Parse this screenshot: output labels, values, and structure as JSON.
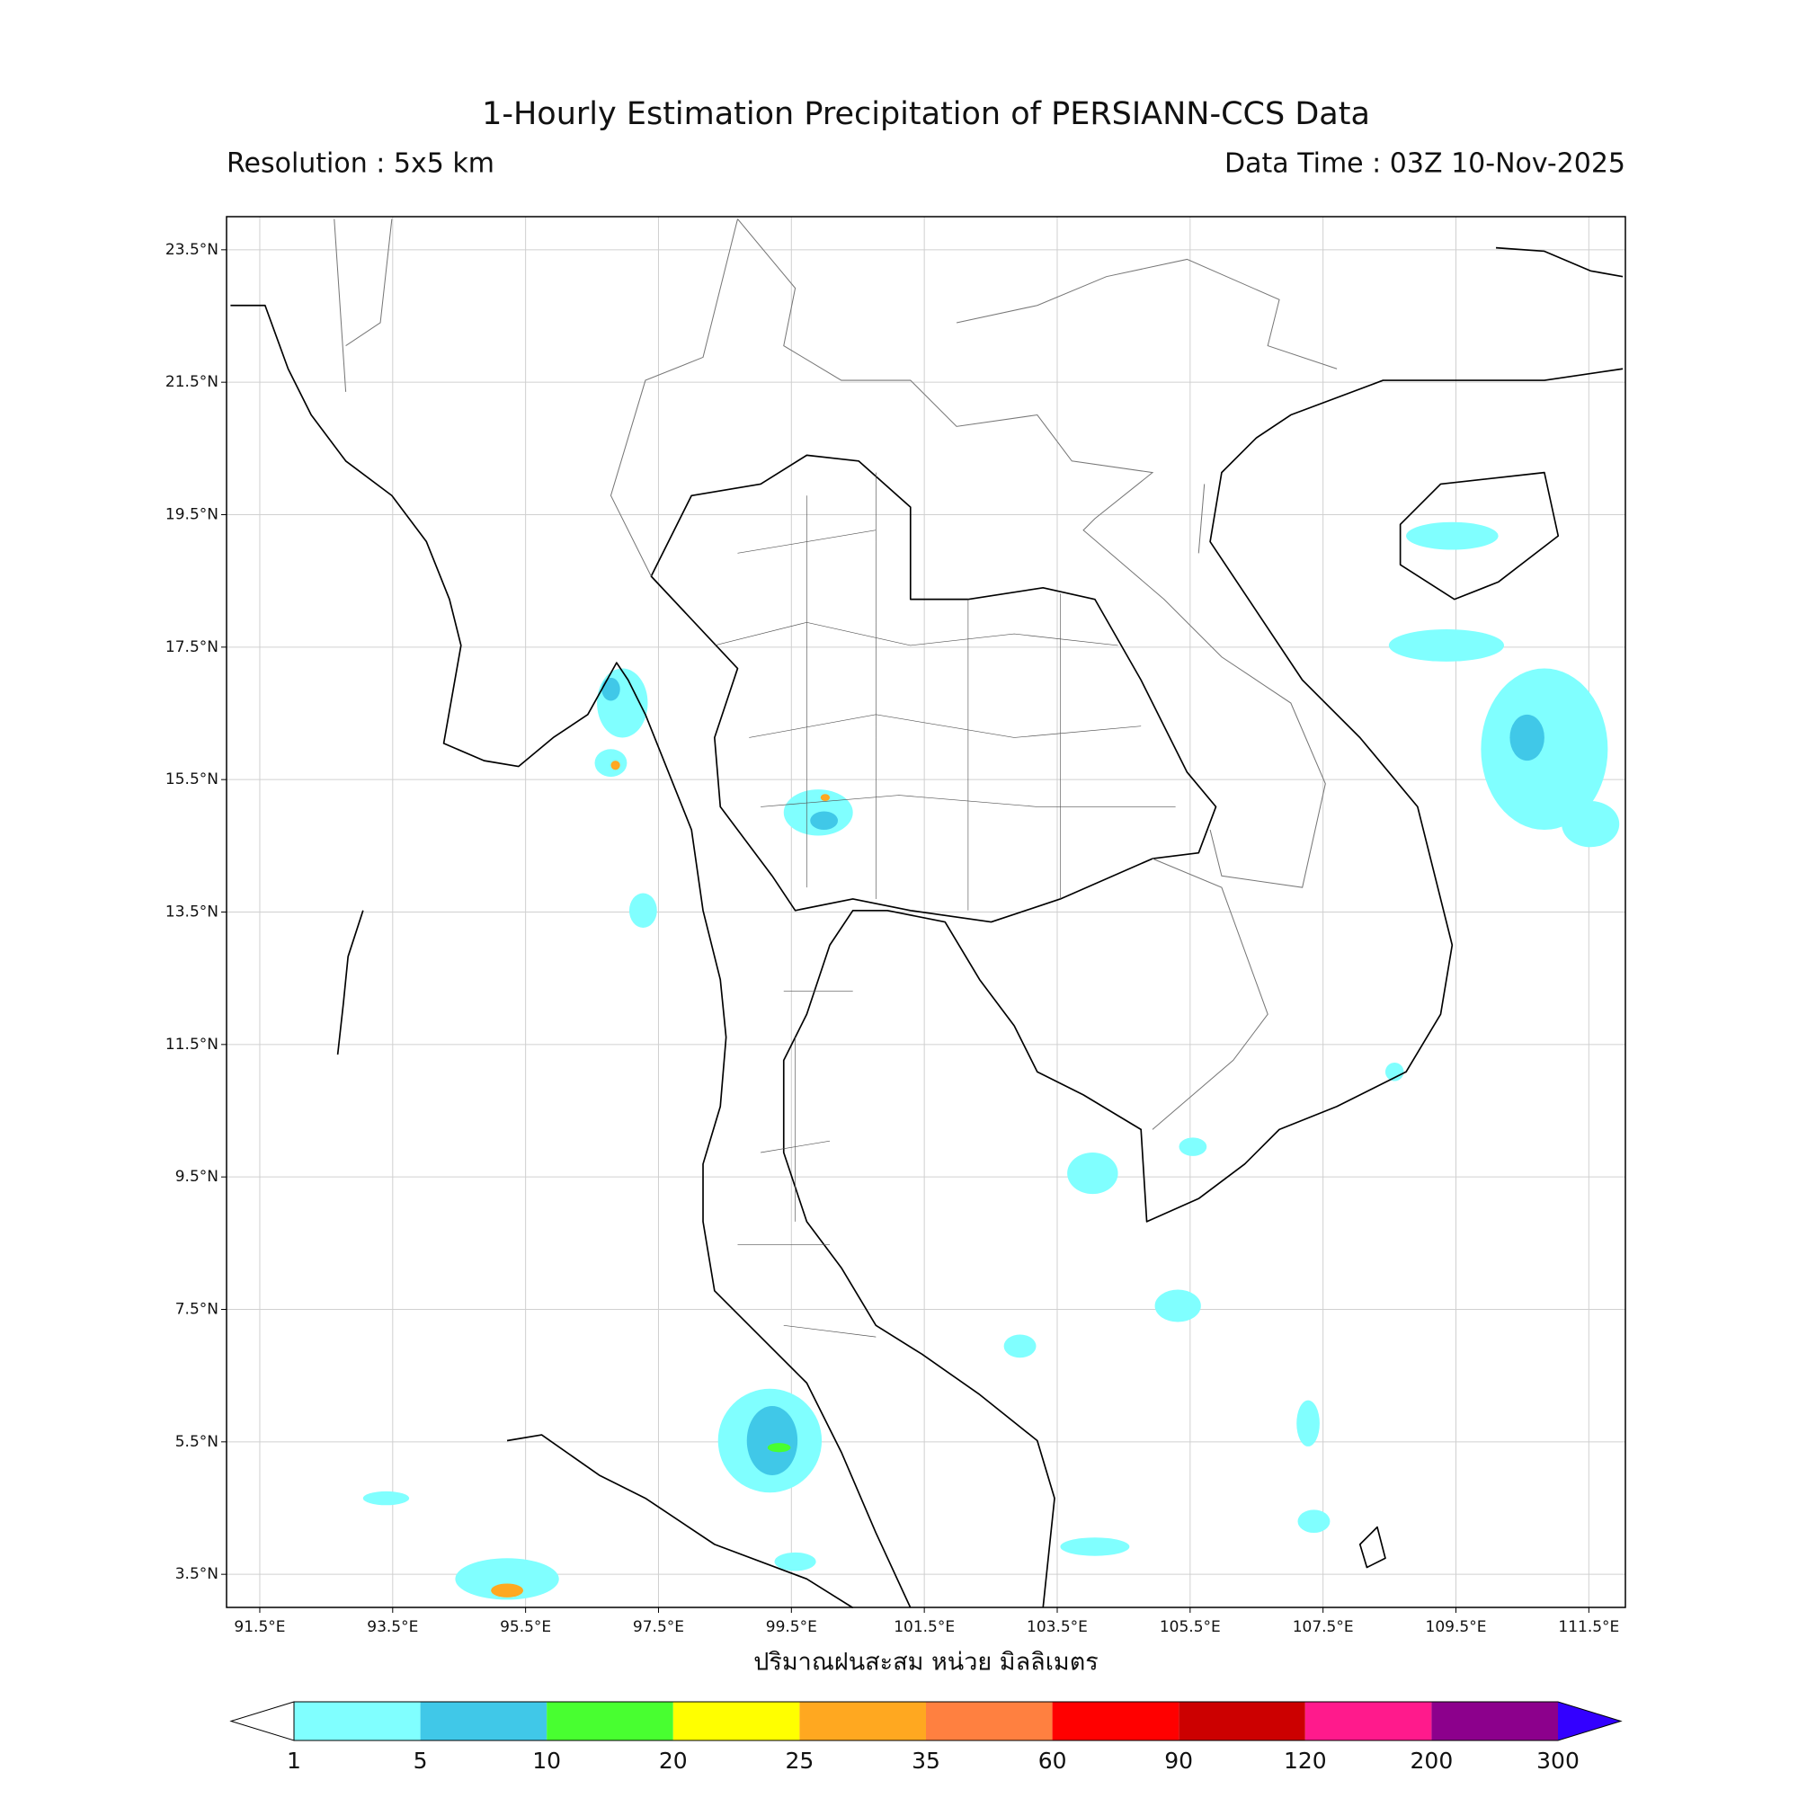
{
  "map": {
    "title": "1-Hourly Estimation Precipitation of PERSIANN-CCS Data",
    "resolution": "Resolution : 5x5 km",
    "data_time": "Data Time : 03Z 10-Nov-2025",
    "lon_range": [
      91,
      112.05
    ],
    "lat_range": [
      3,
      24
    ],
    "lon_ticks": [
      {
        "value": 91.5,
        "label": "91.5°E"
      },
      {
        "value": 93.5,
        "label": "93.5°E"
      },
      {
        "value": 95.5,
        "label": "95.5°E"
      },
      {
        "value": 97.5,
        "label": "97.5°E"
      },
      {
        "value": 99.5,
        "label": "99.5°E"
      },
      {
        "value": 101.5,
        "label": "101.5°E"
      },
      {
        "value": 103.5,
        "label": "103.5°E"
      },
      {
        "value": 105.5,
        "label": "105.5°E"
      },
      {
        "value": 107.5,
        "label": "107.5°E"
      },
      {
        "value": 109.5,
        "label": "109.5°E"
      },
      {
        "value": 111.5,
        "label": "111.5°E"
      }
    ],
    "lat_ticks": [
      {
        "value": 3.5,
        "label": "3.5°N"
      },
      {
        "value": 5.5,
        "label": "5.5°N"
      },
      {
        "value": 7.5,
        "label": "7.5°N"
      },
      {
        "value": 9.5,
        "label": "9.5°N"
      },
      {
        "value": 11.5,
        "label": "11.5°N"
      },
      {
        "value": 13.5,
        "label": "13.5°N"
      },
      {
        "value": 15.5,
        "label": "15.5°N"
      },
      {
        "value": 17.5,
        "label": "17.5°N"
      },
      {
        "value": 19.5,
        "label": "19.5°N"
      },
      {
        "value": 21.5,
        "label": "21.5°N"
      },
      {
        "value": 23.5,
        "label": "23.5°N"
      }
    ],
    "grid": true,
    "xlabel": "ปริมาณฝนสะสม หน่วย มิลลิเมตร",
    "colorbar": {
      "levels": [
        1,
        5,
        10,
        20,
        25,
        35,
        60,
        90,
        120,
        200,
        300
      ],
      "colors": [
        "#80ffff",
        "#40c8e8",
        "#48ff30",
        "#ffff00",
        "#ffa820",
        "#ff8040",
        "#ff0000",
        "#cc0000",
        "#ff1a8c",
        "#8c008c"
      ],
      "under_color": "#ffffff",
      "over_color": "#3300ff"
    }
  }
}
